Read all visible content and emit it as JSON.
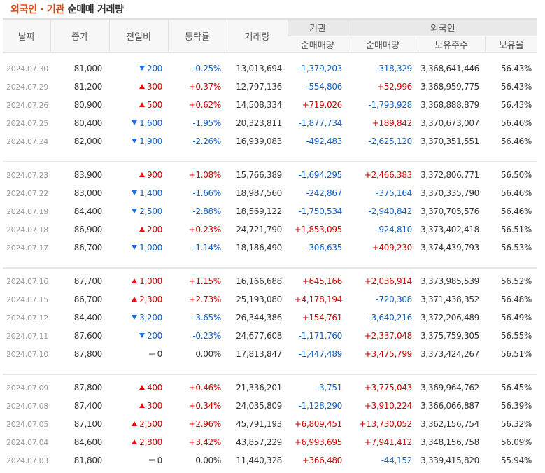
{
  "title": {
    "accent": "외국인 · 기관",
    "rest": " 순매매 거래량"
  },
  "colors": {
    "accent": "#e4490f",
    "up": "#d20000",
    "down": "#0f5ec8",
    "flat_icon": "#aaaaaa"
  },
  "table": {
    "headers": {
      "date": "날짜",
      "close": "종가",
      "change": "전일비",
      "rate": "등락률",
      "volume": "거래량",
      "group_institution": "기관",
      "group_foreign": "외국인",
      "inst_net": "순매매량",
      "foreign_net": "순매매량",
      "foreign_shares": "보유주수",
      "foreign_ratio": "보유율"
    },
    "rows": [
      {
        "date": "2024.07.30",
        "close": "81,000",
        "dir": "down",
        "change": "200",
        "rate": "-0.25%",
        "volume": "13,013,694",
        "inst_net": "-1,379,203",
        "inst_dir": "down",
        "foreign_net": "-318,329",
        "foreign_dir": "down",
        "shares": "3,368,641,446",
        "ratio": "56.43%"
      },
      {
        "date": "2024.07.29",
        "close": "81,200",
        "dir": "up",
        "change": "300",
        "rate": "+0.37%",
        "volume": "12,797,136",
        "inst_net": "-554,806",
        "inst_dir": "down",
        "foreign_net": "+52,996",
        "foreign_dir": "up",
        "shares": "3,368,959,775",
        "ratio": "56.43%"
      },
      {
        "date": "2024.07.26",
        "close": "80,900",
        "dir": "up",
        "change": "500",
        "rate": "+0.62%",
        "volume": "14,508,334",
        "inst_net": "+719,026",
        "inst_dir": "up",
        "foreign_net": "-1,793,928",
        "foreign_dir": "down",
        "shares": "3,368,888,879",
        "ratio": "56.43%"
      },
      {
        "date": "2024.07.25",
        "close": "80,400",
        "dir": "down",
        "change": "1,600",
        "rate": "-1.95%",
        "volume": "20,323,811",
        "inst_net": "-1,877,734",
        "inst_dir": "down",
        "foreign_net": "+189,842",
        "foreign_dir": "up",
        "shares": "3,370,673,007",
        "ratio": "56.46%"
      },
      {
        "date": "2024.07.24",
        "close": "82,000",
        "dir": "down",
        "change": "1,900",
        "rate": "-2.26%",
        "volume": "16,939,083",
        "inst_net": "-492,483",
        "inst_dir": "down",
        "foreign_net": "-2,625,120",
        "foreign_dir": "down",
        "shares": "3,370,351,551",
        "ratio": "56.46%"
      },
      {
        "date": "2024.07.23",
        "close": "83,900",
        "dir": "up",
        "change": "900",
        "rate": "+1.08%",
        "volume": "15,766,389",
        "inst_net": "-1,694,295",
        "inst_dir": "down",
        "foreign_net": "+2,466,383",
        "foreign_dir": "up",
        "shares": "3,372,806,771",
        "ratio": "56.50%"
      },
      {
        "date": "2024.07.22",
        "close": "83,000",
        "dir": "down",
        "change": "1,400",
        "rate": "-1.66%",
        "volume": "18,987,560",
        "inst_net": "-242,867",
        "inst_dir": "down",
        "foreign_net": "-375,164",
        "foreign_dir": "down",
        "shares": "3,370,335,790",
        "ratio": "56.46%"
      },
      {
        "date": "2024.07.19",
        "close": "84,400",
        "dir": "down",
        "change": "2,500",
        "rate": "-2.88%",
        "volume": "18,569,122",
        "inst_net": "-1,750,534",
        "inst_dir": "down",
        "foreign_net": "-2,940,842",
        "foreign_dir": "down",
        "shares": "3,370,705,576",
        "ratio": "56.46%"
      },
      {
        "date": "2024.07.18",
        "close": "86,900",
        "dir": "up",
        "change": "200",
        "rate": "+0.23%",
        "volume": "24,721,790",
        "inst_net": "+1,853,095",
        "inst_dir": "up",
        "foreign_net": "-924,810",
        "foreign_dir": "down",
        "shares": "3,373,402,418",
        "ratio": "56.51%"
      },
      {
        "date": "2024.07.17",
        "close": "86,700",
        "dir": "down",
        "change": "1,000",
        "rate": "-1.14%",
        "volume": "18,186,490",
        "inst_net": "-306,635",
        "inst_dir": "down",
        "foreign_net": "+409,230",
        "foreign_dir": "up",
        "shares": "3,374,439,793",
        "ratio": "56.53%"
      },
      {
        "date": "2024.07.16",
        "close": "87,700",
        "dir": "up",
        "change": "1,000",
        "rate": "+1.15%",
        "volume": "16,166,688",
        "inst_net": "+645,166",
        "inst_dir": "up",
        "foreign_net": "+2,036,914",
        "foreign_dir": "up",
        "shares": "3,373,985,539",
        "ratio": "56.52%"
      },
      {
        "date": "2024.07.15",
        "close": "86,700",
        "dir": "up",
        "change": "2,300",
        "rate": "+2.73%",
        "volume": "25,193,080",
        "inst_net": "+4,178,194",
        "inst_dir": "up",
        "foreign_net": "-720,308",
        "foreign_dir": "down",
        "shares": "3,371,438,352",
        "ratio": "56.48%"
      },
      {
        "date": "2024.07.12",
        "close": "84,400",
        "dir": "down",
        "change": "3,200",
        "rate": "-3.65%",
        "volume": "26,344,386",
        "inst_net": "+154,761",
        "inst_dir": "up",
        "foreign_net": "-3,640,216",
        "foreign_dir": "down",
        "shares": "3,372,206,489",
        "ratio": "56.49%"
      },
      {
        "date": "2024.07.11",
        "close": "87,600",
        "dir": "down",
        "change": "200",
        "rate": "-0.23%",
        "volume": "24,677,608",
        "inst_net": "-1,171,760",
        "inst_dir": "down",
        "foreign_net": "+2,337,048",
        "foreign_dir": "up",
        "shares": "3,375,759,305",
        "ratio": "56.55%"
      },
      {
        "date": "2024.07.10",
        "close": "87,800",
        "dir": "flat",
        "change": "0",
        "rate": "0.00%",
        "volume": "17,813,847",
        "inst_net": "-1,447,489",
        "inst_dir": "down",
        "foreign_net": "+3,475,799",
        "foreign_dir": "up",
        "shares": "3,373,424,267",
        "ratio": "56.51%"
      },
      {
        "date": "2024.07.09",
        "close": "87,800",
        "dir": "up",
        "change": "400",
        "rate": "+0.46%",
        "volume": "21,336,201",
        "inst_net": "-3,751",
        "inst_dir": "down",
        "foreign_net": "+3,775,043",
        "foreign_dir": "up",
        "shares": "3,369,964,762",
        "ratio": "56.45%"
      },
      {
        "date": "2024.07.08",
        "close": "87,400",
        "dir": "up",
        "change": "300",
        "rate": "+0.34%",
        "volume": "24,035,809",
        "inst_net": "-1,128,290",
        "inst_dir": "down",
        "foreign_net": "+3,910,224",
        "foreign_dir": "up",
        "shares": "3,366,066,887",
        "ratio": "56.39%"
      },
      {
        "date": "2024.07.05",
        "close": "87,100",
        "dir": "up",
        "change": "2,500",
        "rate": "+2.96%",
        "volume": "45,791,193",
        "inst_net": "+6,809,451",
        "inst_dir": "up",
        "foreign_net": "+13,730,052",
        "foreign_dir": "up",
        "shares": "3,362,156,754",
        "ratio": "56.32%"
      },
      {
        "date": "2024.07.04",
        "close": "84,600",
        "dir": "up",
        "change": "2,800",
        "rate": "+3.42%",
        "volume": "43,857,229",
        "inst_net": "+6,993,695",
        "inst_dir": "up",
        "foreign_net": "+7,941,412",
        "foreign_dir": "up",
        "shares": "3,348,156,758",
        "ratio": "56.09%"
      },
      {
        "date": "2024.07.03",
        "close": "81,800",
        "dir": "flat",
        "change": "0",
        "rate": "0.00%",
        "volume": "11,440,328",
        "inst_net": "+366,480",
        "inst_dir": "up",
        "foreign_net": "-44,152",
        "foreign_dir": "down",
        "shares": "3,339,415,820",
        "ratio": "55.94%"
      }
    ]
  }
}
